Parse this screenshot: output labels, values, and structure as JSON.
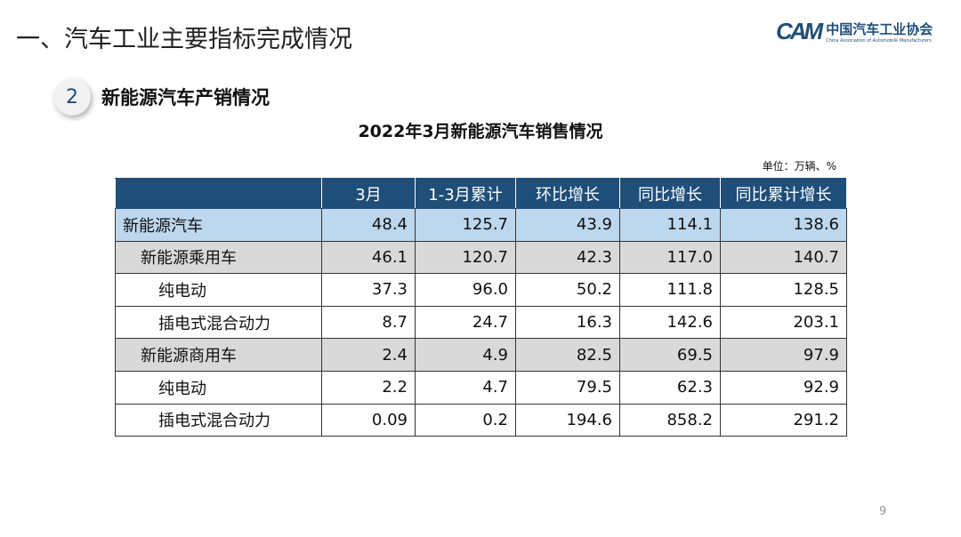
{
  "title": "一、汽车工业主要指标完成情况",
  "logo": {
    "mark": "CAM",
    "cn": "中国汽车工业协会",
    "en": "China Association of Automobile Manufacturers"
  },
  "section": {
    "number": "2",
    "title": "新能源汽车产销情况"
  },
  "table": {
    "title": "2022年3月新能源汽车销售情况",
    "unit": "单位：万辆、%",
    "headers": [
      "",
      "3月",
      "1-3月累计",
      "环比增长",
      "同比增长",
      "同比累计增长"
    ],
    "rows": [
      {
        "label": "新能源汽车",
        "level": 0,
        "values": [
          "48.4",
          "125.7",
          "43.9",
          "114.1",
          "138.6"
        ]
      },
      {
        "label": "新能源乘用车",
        "level": 1,
        "values": [
          "46.1",
          "120.7",
          "42.3",
          "117.0",
          "140.7"
        ]
      },
      {
        "label": "纯电动",
        "level": 2,
        "values": [
          "37.3",
          "96.0",
          "50.2",
          "111.8",
          "128.5"
        ]
      },
      {
        "label": "插电式混合动力",
        "level": 2,
        "values": [
          "8.7",
          "24.7",
          "16.3",
          "142.6",
          "203.1"
        ]
      },
      {
        "label": "新能源商用车",
        "level": 1,
        "values": [
          "2.4",
          "4.9",
          "82.5",
          "69.5",
          "97.9"
        ]
      },
      {
        "label": "纯电动",
        "level": 2,
        "values": [
          "2.2",
          "4.7",
          "79.5",
          "62.3",
          "92.9"
        ]
      },
      {
        "label": "插电式混合动力",
        "level": 2,
        "values": [
          "0.09",
          "0.2",
          "194.6",
          "858.2",
          "291.2"
        ]
      }
    ]
  },
  "page_number": "9",
  "colors": {
    "header": "#1f4e79",
    "total_row": "#bdd7ee",
    "sub_row": "#d9d9d9"
  }
}
